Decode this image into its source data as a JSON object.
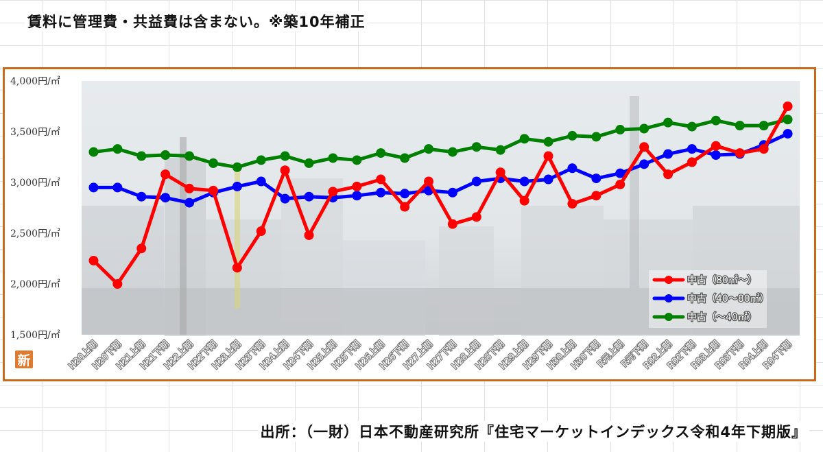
{
  "header": {
    "note": "賃料に管理費・共益費は含まない。※築10年補正"
  },
  "footer": {
    "source": "出所：（一財）日本不動産研究所『住宅マーケットインデックス令和4年下期版』"
  },
  "badge": {
    "label": "新"
  },
  "chart_data": {
    "type": "line",
    "title": "",
    "xlabel": "",
    "ylabel": "",
    "ylim": [
      1500,
      4000
    ],
    "yticks": [
      "4,000円/㎡",
      "3,500円/㎡",
      "3,000円/㎡",
      "2,500円/㎡",
      "2,000円/㎡",
      "1,500円/㎡"
    ],
    "yticks_values": [
      4000,
      3500,
      3000,
      2500,
      2000,
      1500
    ],
    "categories": [
      "H20上期",
      "H20下期",
      "H21上期",
      "H21下期",
      "H22上期",
      "H22下期",
      "H23上期",
      "H23下期",
      "H24上期",
      "H24下期",
      "H25上期",
      "H25下期",
      "H26上期",
      "H26下期",
      "H27上期",
      "H27下期",
      "H28上期",
      "H28下期",
      "H29上期",
      "H29下期",
      "H30上期",
      "H30下期",
      "R元上期",
      "R元下期",
      "R02上期",
      "R02下期",
      "R03上期",
      "R03下期",
      "R04上期",
      "R04下期"
    ],
    "legend_position": "bottom-right",
    "grid": false,
    "series": [
      {
        "name": "中古（80㎡～）",
        "color": "#ff0000",
        "values": [
          2230,
          2000,
          2350,
          3080,
          2940,
          2920,
          2160,
          2520,
          3120,
          2480,
          2910,
          2960,
          3030,
          2760,
          3010,
          2590,
          2660,
          3100,
          2820,
          3260,
          2790,
          2870,
          2980,
          3350,
          3080,
          3200,
          3360,
          3290,
          3330,
          3750
        ]
      },
      {
        "name": "中古（40～80㎡）",
        "color": "#0000ff",
        "values": [
          2950,
          2950,
          2860,
          2850,
          2800,
          2900,
          2960,
          3010,
          2840,
          2860,
          2850,
          2870,
          2900,
          2890,
          2920,
          2900,
          3010,
          3040,
          3010,
          3030,
          3140,
          3040,
          3090,
          3180,
          3280,
          3330,
          3270,
          3280,
          3370,
          3480
        ]
      },
      {
        "name": "中古（～40㎡）",
        "color": "#008000",
        "values": [
          3300,
          3330,
          3260,
          3270,
          3260,
          3190,
          3150,
          3220,
          3260,
          3190,
          3240,
          3220,
          3290,
          3240,
          3330,
          3300,
          3350,
          3320,
          3430,
          3400,
          3460,
          3450,
          3520,
          3530,
          3590,
          3550,
          3610,
          3560,
          3560,
          3620
        ]
      }
    ]
  }
}
